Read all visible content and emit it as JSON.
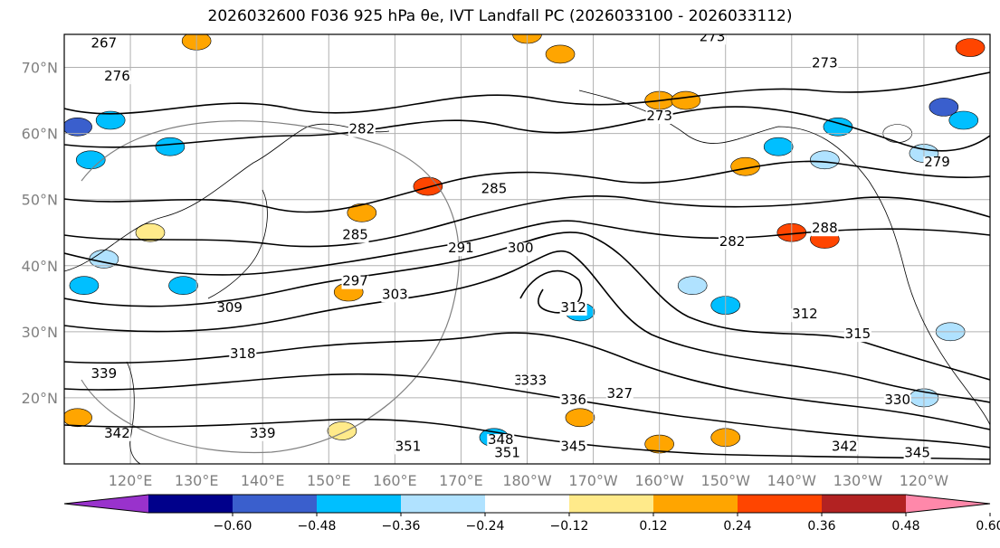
{
  "title": "2026032600 F036 925 hPa θe, IVT Landfall PC (2026033100 - 2026033112)",
  "map": {
    "projection_extent": {
      "lon_min": 110,
      "lon_max": 250,
      "lat_min": 10,
      "lat_max": 75
    },
    "lat_labels": [
      {
        "lat": 70,
        "text": "70°N"
      },
      {
        "lat": 60,
        "text": "60°N"
      },
      {
        "lat": 50,
        "text": "50°N"
      },
      {
        "lat": 40,
        "text": "40°N"
      },
      {
        "lat": 30,
        "text": "30°N"
      },
      {
        "lat": 20,
        "text": "20°N"
      }
    ],
    "lon_labels": [
      {
        "lon": 120,
        "text": "120°E"
      },
      {
        "lon": 130,
        "text": "130°E"
      },
      {
        "lon": 140,
        "text": "140°E"
      },
      {
        "lon": 150,
        "text": "150°E"
      },
      {
        "lon": 160,
        "text": "160°E"
      },
      {
        "lon": 170,
        "text": "170°E"
      },
      {
        "lon": 180,
        "text": "180°W"
      },
      {
        "lon": 190,
        "text": "170°W"
      },
      {
        "lon": 200,
        "text": "160°W"
      },
      {
        "lon": 210,
        "text": "150°W"
      },
      {
        "lon": 220,
        "text": "140°W"
      },
      {
        "lon": 230,
        "text": "130°W"
      },
      {
        "lon": 240,
        "text": "120°W"
      }
    ],
    "contour_labels": [
      {
        "text": "267",
        "lon": 116,
        "lat": 73
      },
      {
        "text": "276",
        "lon": 118,
        "lat": 68
      },
      {
        "text": "273",
        "lon": 208,
        "lat": 74
      },
      {
        "text": "273",
        "lon": 225,
        "lat": 70
      },
      {
        "text": "282",
        "lon": 155,
        "lat": 60
      },
      {
        "text": "273",
        "lon": 200,
        "lat": 62
      },
      {
        "text": "285",
        "lon": 175,
        "lat": 51
      },
      {
        "text": "282",
        "lon": 211,
        "lat": 43
      },
      {
        "text": "288",
        "lon": 225,
        "lat": 45
      },
      {
        "text": "285",
        "lon": 154,
        "lat": 44
      },
      {
        "text": "291",
        "lon": 170,
        "lat": 42
      },
      {
        "text": "300",
        "lon": 179,
        "lat": 42
      },
      {
        "text": "297",
        "lon": 154,
        "lat": 37
      },
      {
        "text": "303",
        "lon": 160,
        "lat": 35
      },
      {
        "text": "309",
        "lon": 135,
        "lat": 33
      },
      {
        "text": "312",
        "lon": 187,
        "lat": 33
      },
      {
        "text": "318",
        "lon": 137,
        "lat": 26
      },
      {
        "text": "312",
        "lon": 222,
        "lat": 32
      },
      {
        "text": "315",
        "lon": 230,
        "lat": 29
      },
      {
        "text": "330",
        "lon": 180,
        "lat": 22
      },
      {
        "text": "333",
        "lon": 181,
        "lat": 22
      },
      {
        "text": "336",
        "lon": 187,
        "lat": 19
      },
      {
        "text": "327",
        "lon": 194,
        "lat": 20
      },
      {
        "text": "339",
        "lon": 140,
        "lat": 14
      },
      {
        "text": "348",
        "lon": 176,
        "lat": 13
      },
      {
        "text": "345",
        "lon": 187,
        "lat": 12
      },
      {
        "text": "351",
        "lon": 162,
        "lat": 12
      },
      {
        "text": "351",
        "lon": 177,
        "lat": 11
      },
      {
        "text": "330",
        "lon": 236,
        "lat": 19
      },
      {
        "text": "342",
        "lon": 228,
        "lat": 12
      },
      {
        "text": "345",
        "lon": 239,
        "lat": 11
      },
      {
        "text": "339",
        "lon": 116,
        "lat": 23
      },
      {
        "text": "342",
        "lon": 118,
        "lat": 14
      },
      {
        "text": "279",
        "lon": 242,
        "lat": 55
      }
    ],
    "color_cells": [
      {
        "lon": 117,
        "lat": 62,
        "level": -0.36
      },
      {
        "lon": 112,
        "lat": 61,
        "level": -0.48
      },
      {
        "lon": 114,
        "lat": 56,
        "level": -0.36
      },
      {
        "lon": 126,
        "lat": 58,
        "level": -0.36
      },
      {
        "lon": 116,
        "lat": 41,
        "level": -0.24
      },
      {
        "lon": 113,
        "lat": 37,
        "level": -0.36
      },
      {
        "lon": 128,
        "lat": 37,
        "level": -0.36
      },
      {
        "lon": 165,
        "lat": 52,
        "level": 0.36
      },
      {
        "lon": 155,
        "lat": 48,
        "level": 0.24
      },
      {
        "lon": 153,
        "lat": 36,
        "level": 0.24
      },
      {
        "lon": 200,
        "lat": 65,
        "level": 0.24
      },
      {
        "lon": 204,
        "lat": 65,
        "level": 0.24
      },
      {
        "lon": 213,
        "lat": 55,
        "level": 0.24
      },
      {
        "lon": 220,
        "lat": 45,
        "level": 0.36
      },
      {
        "lon": 225,
        "lat": 44,
        "level": 0.36
      },
      {
        "lon": 218,
        "lat": 58,
        "level": -0.36
      },
      {
        "lon": 225,
        "lat": 56,
        "level": -0.24
      },
      {
        "lon": 240,
        "lat": 57,
        "level": -0.24
      },
      {
        "lon": 243,
        "lat": 64,
        "level": -0.48
      },
      {
        "lon": 246,
        "lat": 62,
        "level": -0.36
      },
      {
        "lon": 227,
        "lat": 61,
        "level": -0.36
      },
      {
        "lon": 205,
        "lat": 37,
        "level": -0.24
      },
      {
        "lon": 210,
        "lat": 34,
        "level": -0.36
      },
      {
        "lon": 188,
        "lat": 33,
        "level": -0.36
      },
      {
        "lon": 247,
        "lat": 73,
        "level": 0.36
      },
      {
        "lon": 188,
        "lat": 17,
        "level": 0.24
      },
      {
        "lon": 210,
        "lat": 14,
        "level": 0.24
      },
      {
        "lon": 200,
        "lat": 13,
        "level": 0.24
      },
      {
        "lon": 175,
        "lat": 14,
        "level": -0.36
      },
      {
        "lon": 152,
        "lat": 15,
        "level": 0.12
      },
      {
        "lon": 112,
        "lat": 17,
        "level": 0.24
      },
      {
        "lon": 130,
        "lat": 74,
        "level": 0.24
      },
      {
        "lon": 180,
        "lat": 75,
        "level": 0.24
      },
      {
        "lon": 185,
        "lat": 72,
        "level": 0.24
      },
      {
        "lon": 244,
        "lat": 30,
        "level": -0.24
      },
      {
        "lon": 240,
        "lat": 20,
        "level": -0.24
      },
      {
        "lon": 236,
        "lat": 60,
        "level": -0.12
      },
      {
        "lon": 123,
        "lat": 45,
        "level": 0.12
      }
    ]
  },
  "colorbar": {
    "boundaries": [
      -0.72,
      -0.6,
      -0.48,
      -0.36,
      -0.24,
      -0.12,
      0.12,
      0.24,
      0.36,
      0.48,
      0.6,
      0.72
    ],
    "tick_labels": [
      "−0.60",
      "−0.48",
      "−0.36",
      "−0.24",
      "−0.12",
      "0.12",
      "0.24",
      "0.36",
      "0.48",
      "0.60"
    ],
    "under_color": "#9932cc",
    "over_color": "#ff88aa",
    "colors": [
      "#9932cc",
      "#00008b",
      "#3a5fcd",
      "#00bfff",
      "#b0e2ff",
      "#ffffff",
      "#ffea8a",
      "#ffa500",
      "#ff4500",
      "#b22222",
      "#ff88aa"
    ]
  }
}
